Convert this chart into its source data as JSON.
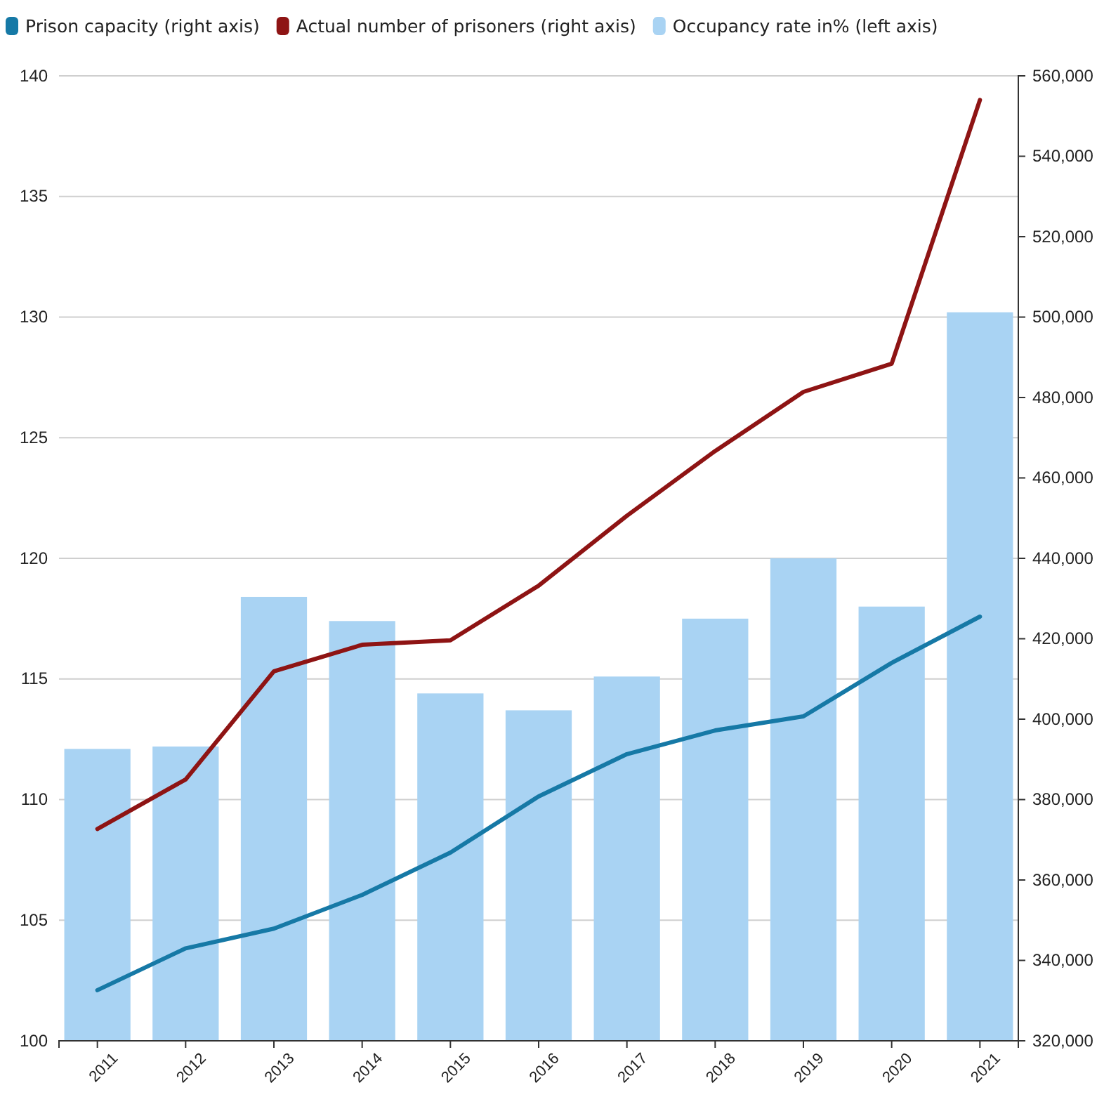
{
  "chart_data": {
    "type": "bar",
    "categories": [
      "2011",
      "2012",
      "2013",
      "2014",
      "2015",
      "2016",
      "2017",
      "2018",
      "2019",
      "2020",
      "2021"
    ],
    "series": [
      {
        "name": "Prison capacity (right axis)",
        "type": "line",
        "axis": "y2",
        "color": "#1679a6",
        "values": [
          332600,
          343000,
          347900,
          356300,
          366800,
          380800,
          391300,
          397200,
          400700,
          414000,
          425500
        ]
      },
      {
        "name": "Actual number of prisoners (right axis)",
        "type": "line",
        "axis": "y2",
        "color": "#8e1414",
        "values": [
          372700,
          385000,
          411900,
          418500,
          419600,
          433200,
          450600,
          466700,
          481400,
          488400,
          554000
        ]
      },
      {
        "name": "Occupancy rate in% (left axis)",
        "color": "#a9d3f3",
        "values": [
          112.1,
          112.2,
          118.4,
          117.4,
          114.4,
          113.7,
          115.1,
          117.5,
          120.0,
          118.0,
          130.2
        ]
      }
    ],
    "ylim": [
      100,
      140
    ],
    "yticks": [
      100,
      105,
      110,
      115,
      120,
      125,
      130,
      135,
      140
    ],
    "y2lim": [
      320000,
      560000
    ],
    "y2ticks": [
      {
        "value": 320000,
        "label": "320,000"
      },
      {
        "value": 340000,
        "label": "340,000"
      },
      {
        "value": 360000,
        "label": "360,000"
      },
      {
        "value": 380000,
        "label": "380,000"
      },
      {
        "value": 400000,
        "label": "400,000"
      },
      {
        "value": 420000,
        "label": "420,000"
      },
      {
        "value": 440000,
        "label": "440,000"
      },
      {
        "value": 460000,
        "label": "460,000"
      },
      {
        "value": 480000,
        "label": "480,000"
      },
      {
        "value": 500000,
        "label": "500,000"
      },
      {
        "value": 520000,
        "label": "520,000"
      },
      {
        "value": 540000,
        "label": "540,000"
      },
      {
        "value": 560000,
        "label": "560,000"
      }
    ],
    "grid": "y",
    "legend": "top left",
    "marker": "none",
    "line_style": "solid"
  }
}
